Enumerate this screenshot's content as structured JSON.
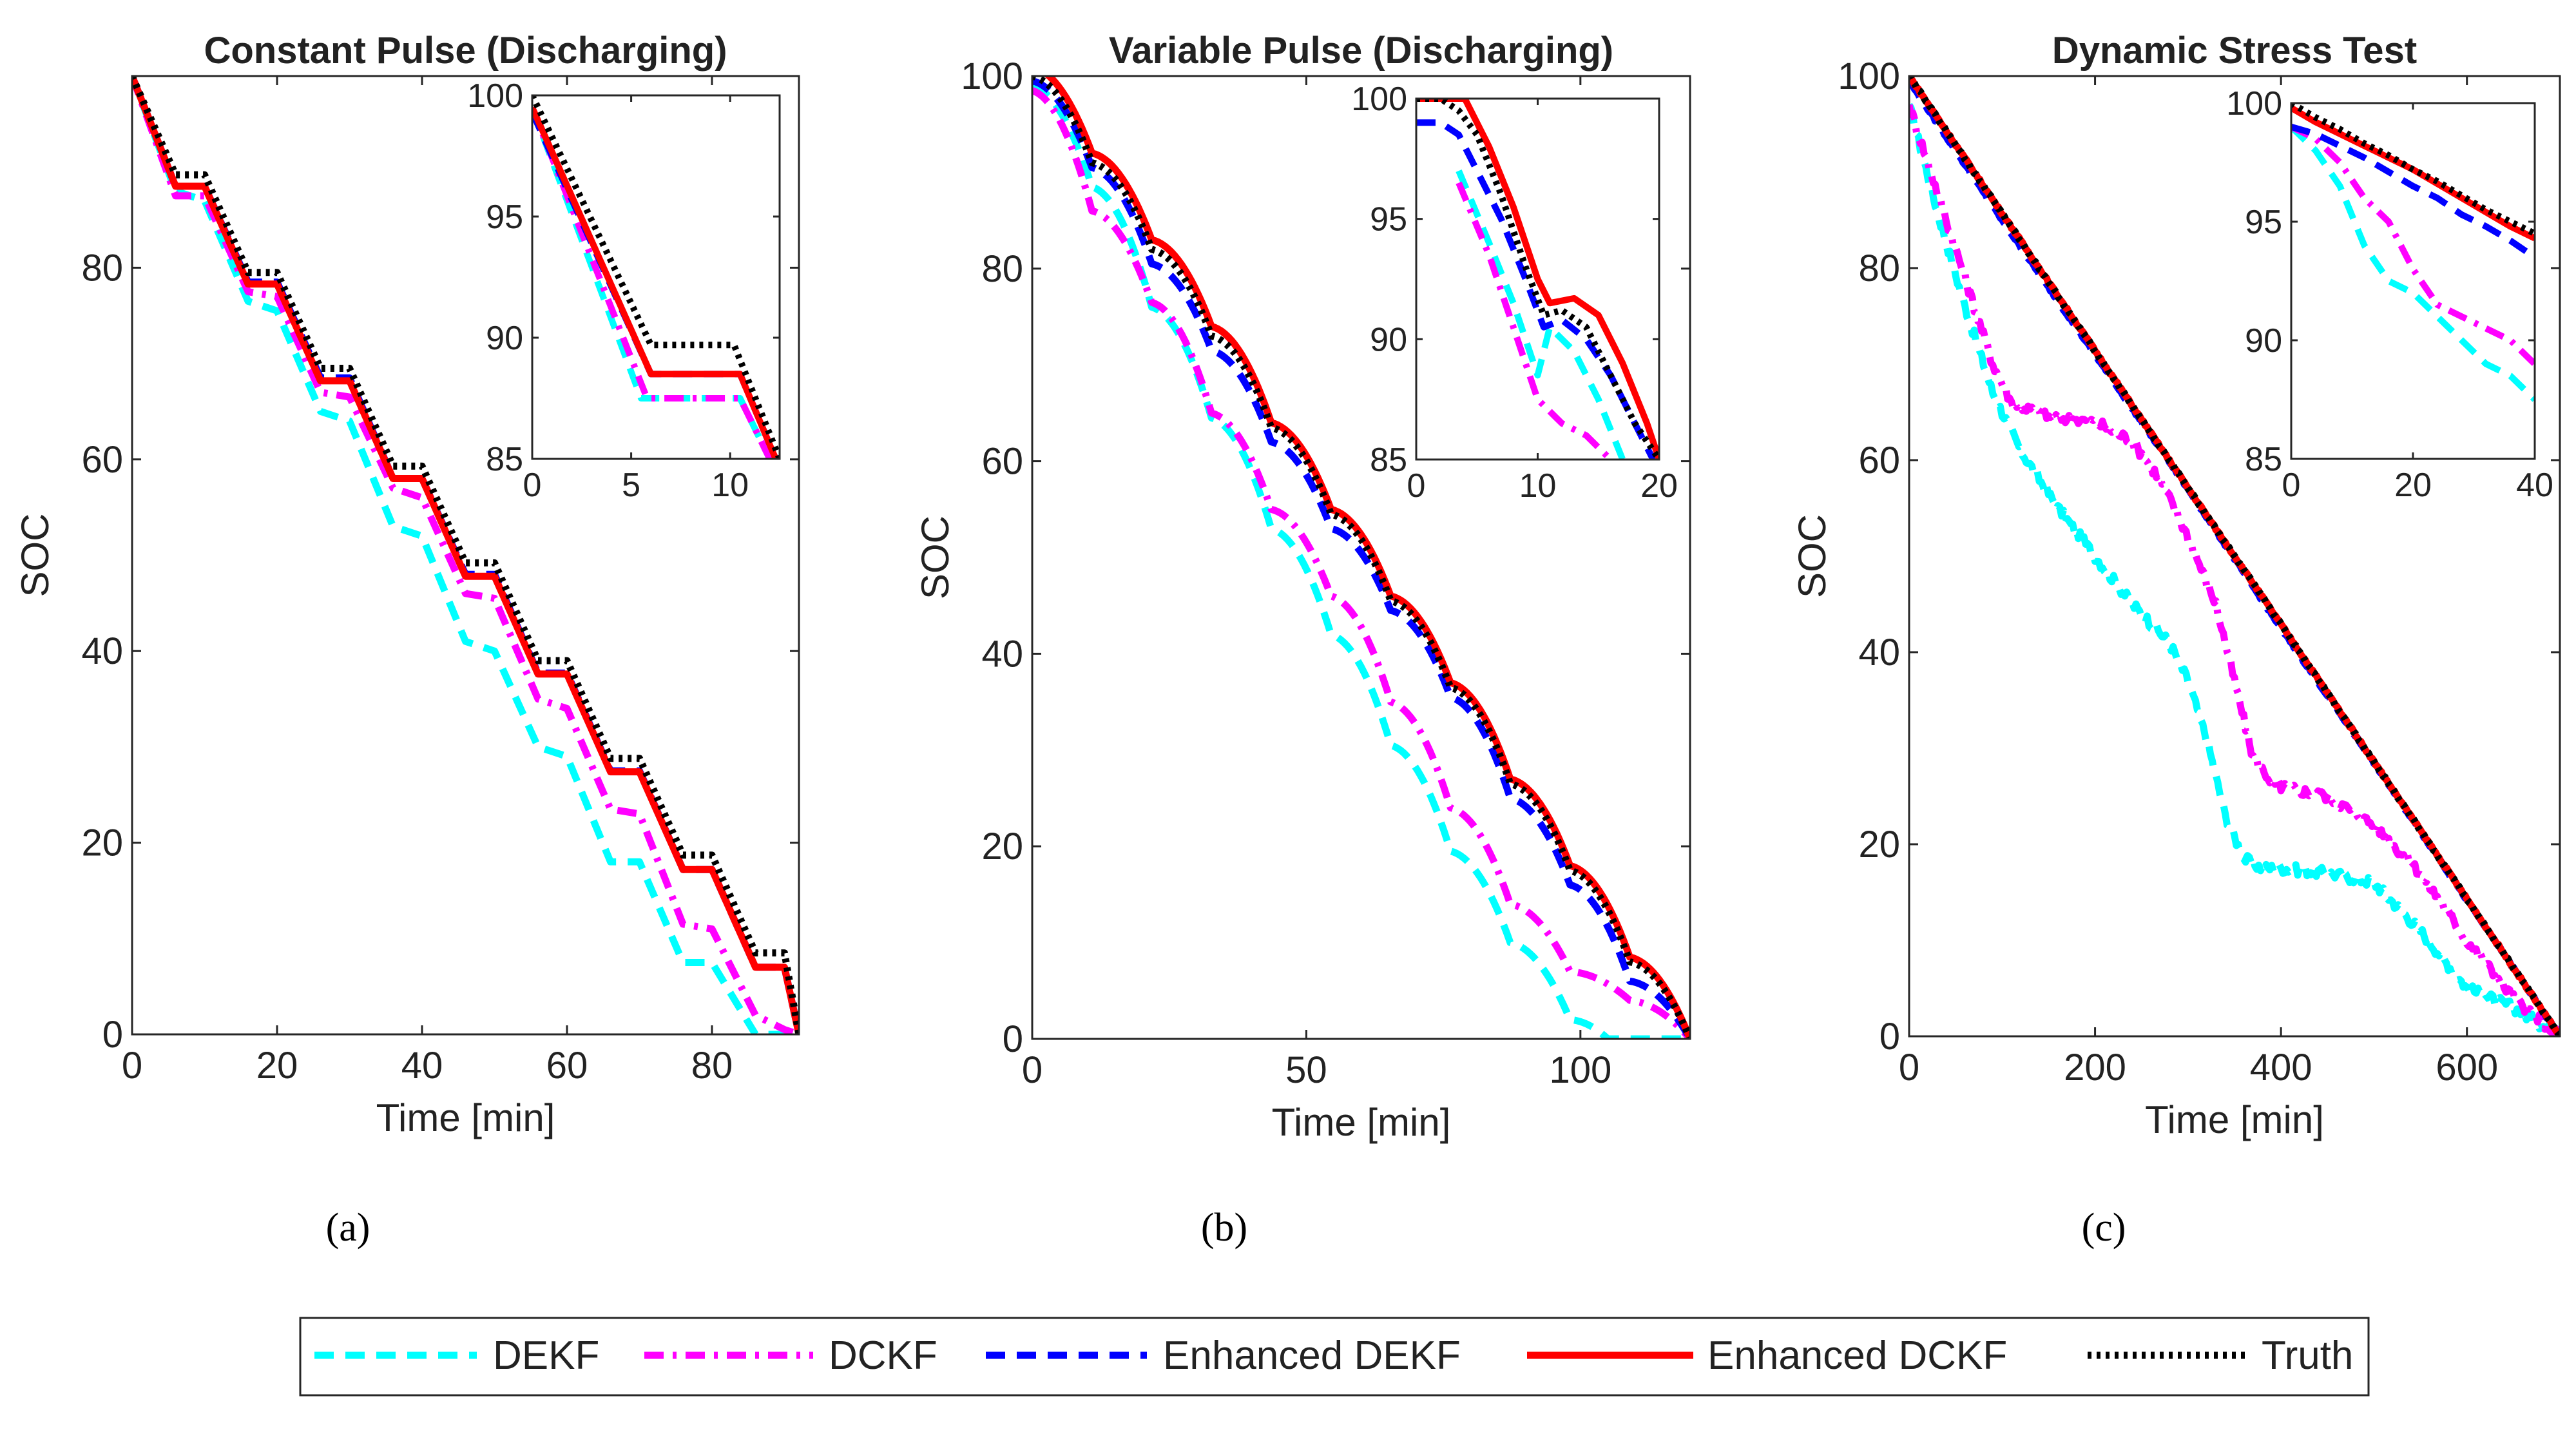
{
  "figure": {
    "subfigure_labels": [
      "(a)",
      "(b)",
      "(c)"
    ],
    "legend": [
      {
        "name": "DEKF",
        "color": "#00FFFF",
        "dash": "dash"
      },
      {
        "name": "DCKF",
        "color": "#FF00FF",
        "dash": "dashdot"
      },
      {
        "name": "Enhanced DEKF",
        "color": "#0000FF",
        "dash": "dash"
      },
      {
        "name": "Enhanced DCKF",
        "color": "#FF0000",
        "dash": "solid"
      },
      {
        "name": "Truth",
        "color": "#000000",
        "dash": "dot"
      }
    ]
  },
  "chart_data": [
    {
      "type": "line",
      "title": "Constant Pulse (Discharging)",
      "xlabel": "Time [min]",
      "ylabel": "SOC",
      "xlim": [
        0,
        92
      ],
      "ylim": [
        0,
        100
      ],
      "xticks": [
        0,
        20,
        40,
        60,
        80
      ],
      "yticks": [
        0,
        20,
        40,
        60,
        80
      ],
      "model": {
        "kind": "steps",
        "T": 92,
        "period": 10,
        "discharge": 6,
        "caps": 9
      },
      "series": [
        {
          "name": "DEKF",
          "color": "#00FFFF",
          "dash": "dash",
          "x": [
            0,
            6,
            10,
            16,
            20,
            26,
            30,
            36,
            40,
            46,
            50,
            56,
            60,
            66,
            70,
            76,
            80,
            86,
            88,
            92
          ],
          "y": [
            100,
            88,
            87,
            76.5,
            75.5,
            65,
            64,
            53,
            52,
            41,
            40,
            30,
            29,
            18,
            18,
            7.5,
            7.5,
            0,
            0,
            0
          ]
        },
        {
          "name": "DCKF",
          "color": "#FF00FF",
          "dash": "dashdot",
          "x": [
            0,
            6,
            10,
            16,
            20,
            26,
            30,
            36,
            40,
            46,
            50,
            56,
            60,
            66,
            70,
            76,
            80,
            86,
            90,
            92
          ],
          "y": [
            100,
            87.5,
            87.5,
            77.5,
            77,
            67,
            66.5,
            57,
            56,
            46,
            45.5,
            35,
            34,
            23.5,
            23,
            11.5,
            11,
            2,
            0.5,
            0
          ]
        },
        {
          "name": "Enhanced DEKF",
          "color": "#0000FF",
          "dash": "dash",
          "x": [
            0,
            6,
            10,
            16,
            20,
            26,
            30,
            36,
            40,
            46,
            50,
            56,
            60,
            66,
            70,
            76,
            80,
            86,
            90,
            92
          ],
          "y": [
            100,
            88.5,
            88.5,
            78.5,
            78.5,
            68.5,
            68.5,
            58,
            58,
            48,
            48,
            37.7,
            37.7,
            27.5,
            27.5,
            17.2,
            17.2,
            7,
            7,
            0
          ]
        },
        {
          "name": "Enhanced DCKF",
          "color": "#FF0000",
          "dash": "solid",
          "x": [
            0,
            6,
            10,
            16,
            20,
            26,
            30,
            36,
            40,
            46,
            50,
            56,
            60,
            66,
            70,
            76,
            80,
            86,
            90,
            92
          ],
          "y": [
            100,
            88.5,
            88.5,
            78.3,
            78.3,
            68.2,
            68.2,
            58,
            58,
            47.8,
            47.8,
            37.6,
            37.6,
            27.4,
            27.4,
            17.2,
            17.2,
            7,
            7,
            0
          ]
        },
        {
          "name": "Truth",
          "color": "#000000",
          "dash": "dot",
          "x": [
            0,
            6,
            10,
            16,
            20,
            26,
            30,
            36,
            40,
            46,
            50,
            56,
            60,
            66,
            70,
            76,
            80,
            86,
            90,
            92
          ],
          "y": [
            100,
            89.7,
            89.7,
            79.5,
            79.5,
            69.5,
            69.5,
            59.3,
            59.3,
            49.2,
            49.2,
            39,
            39,
            28.8,
            28.8,
            18.7,
            18.7,
            8.5,
            8.5,
            0
          ]
        }
      ],
      "inset": {
        "xlim": [
          0,
          12.5
        ],
        "ylim": [
          85,
          100
        ],
        "xticks": [
          0,
          5,
          10
        ],
        "yticks": [
          85,
          90,
          95,
          100
        ],
        "series": [
          {
            "name": "DEKF",
            "x": [
              0,
              5.5,
              10.5,
              12
            ],
            "y": [
              99.5,
              87.5,
              87.5,
              85
            ]
          },
          {
            "name": "DCKF",
            "x": [
              0,
              5.8,
              10.5,
              12
            ],
            "y": [
              99.5,
              87.5,
              87.5,
              85
            ]
          },
          {
            "name": "Enhanced DEKF",
            "x": [
              0,
              6,
              10.5,
              12.3
            ],
            "y": [
              99.3,
              88.5,
              88.5,
              85
            ]
          },
          {
            "name": "Enhanced DCKF",
            "x": [
              0,
              6,
              10.5,
              12.3
            ],
            "y": [
              99.5,
              88.5,
              88.5,
              85
            ]
          },
          {
            "name": "Truth",
            "x": [
              0,
              6,
              10.2,
              12.5
            ],
            "y": [
              100,
              89.7,
              89.7,
              85
            ]
          }
        ]
      }
    },
    {
      "type": "line",
      "title": "Variable Pulse (Discharging)",
      "xlabel": "Time [min]",
      "ylabel": "SOC",
      "xlim": [
        0,
        120
      ],
      "ylim": [
        0,
        100
      ],
      "xticks": [
        0,
        50,
        100
      ],
      "yticks": [
        0,
        20,
        40,
        60,
        80,
        100
      ],
      "model": {
        "kind": "scallops",
        "T": 120,
        "period": 10.9,
        "n": 11
      },
      "series": [
        {
          "name": "DEKF",
          "color": "#00FFFF",
          "dash": "dash",
          "x": [
            0,
            10.9,
            21.8,
            32.7,
            43.6,
            54.5,
            65.4,
            76.3,
            87.2,
            98.1,
            105,
            120
          ],
          "y": [
            99,
            88.5,
            76,
            64.5,
            53,
            42,
            30.5,
            19.5,
            10,
            2,
            0,
            0
          ]
        },
        {
          "name": "DCKF",
          "color": "#FF00FF",
          "dash": "dashdot",
          "x": [
            0,
            10.9,
            21.8,
            32.7,
            43.6,
            54.5,
            65.4,
            76.3,
            87.2,
            98.1,
            109,
            120
          ],
          "y": [
            98.5,
            86,
            76.5,
            65,
            55,
            46,
            35,
            24,
            14,
            7,
            4,
            0
          ]
        },
        {
          "name": "Enhanced DEKF",
          "color": "#0000FF",
          "dash": "dash",
          "x": [
            0,
            10.9,
            21.8,
            32.7,
            43.6,
            54.5,
            65.4,
            76.3,
            87.2,
            98.1,
            109,
            120
          ],
          "y": [
            99.5,
            90.5,
            80.5,
            71.5,
            62,
            53,
            44.5,
            35.5,
            25,
            16,
            6,
            0
          ]
        },
        {
          "name": "Enhanced DCKF",
          "color": "#FF0000",
          "dash": "solid",
          "x": [
            0,
            10.9,
            21.8,
            32.7,
            43.6,
            54.5,
            65.4,
            76.3,
            87.2,
            98.1,
            109,
            120
          ],
          "y": [
            101,
            92,
            83,
            74,
            64,
            55,
            46,
            37,
            27,
            18,
            8.5,
            0
          ]
        },
        {
          "name": "Truth",
          "color": "#000000",
          "dash": "dot",
          "x": [
            0,
            10.9,
            21.8,
            32.7,
            43.6,
            54.5,
            65.4,
            76.3,
            87.2,
            98.1,
            109,
            120
          ],
          "y": [
            100,
            91,
            82,
            73,
            63.5,
            54.5,
            45.5,
            36.5,
            26.5,
            17.5,
            8,
            0
          ]
        }
      ],
      "inset": {
        "xlim": [
          0,
          20
        ],
        "ylim": [
          85,
          100
        ],
        "xticks": [
          0,
          10,
          20
        ],
        "yticks": [
          85,
          90,
          95,
          100
        ],
        "series": [
          {
            "name": "DEKF",
            "x": [
              3.5,
              6,
              8,
              10,
              11,
              13,
              15,
              17
            ],
            "y": [
              97,
              94,
              91.5,
              88.5,
              90.5,
              89.5,
              87.5,
              85
            ]
          },
          {
            "name": "DCKF",
            "x": [
              3.5,
              6,
              8,
              10,
              12,
              14,
              16
            ],
            "y": [
              96.5,
              93.5,
              90.5,
              87.5,
              86.5,
              86,
              85
            ]
          },
          {
            "name": "Enhanced DEKF",
            "x": [
              0,
              2,
              3.5,
              5,
              7,
              9,
              10.5,
              12,
              14,
              16,
              18,
              19.5
            ],
            "y": [
              99,
              99,
              98.5,
              97,
              95,
              92.5,
              90.5,
              90.8,
              90,
              88.5,
              86.5,
              85
            ]
          },
          {
            "name": "Enhanced DCKF",
            "x": [
              0,
              2,
              4,
              6,
              8,
              10,
              11,
              13,
              15,
              17,
              19,
              20
            ],
            "y": [
              100,
              100,
              100,
              98,
              95.5,
              92.5,
              91.5,
              91.7,
              91,
              89,
              86.5,
              85
            ]
          },
          {
            "name": "Truth",
            "x": [
              0,
              2,
              3.5,
              5,
              7,
              9,
              10.5,
              12,
              14,
              16,
              18,
              20
            ],
            "y": [
              100,
              100,
              99.5,
              98.5,
              96,
              93,
              91,
              91.2,
              90.5,
              88.5,
              86.5,
              85
            ]
          }
        ]
      }
    },
    {
      "type": "line",
      "title": "Dynamic Stress Test",
      "xlabel": "Time [min]",
      "ylabel": "SOC",
      "xlim": [
        0,
        700
      ],
      "ylim": [
        0,
        100
      ],
      "xticks": [
        0,
        200,
        400,
        600
      ],
      "yticks": [
        0,
        20,
        40,
        60,
        80,
        100
      ],
      "model": {
        "kind": "noisy",
        "T": 700
      },
      "series": [
        {
          "name": "DEKF",
          "color": "#00FFFF",
          "dash": "dash",
          "x": [
            0,
            30,
            60,
            90,
            120,
            160,
            200,
            240,
            280,
            300,
            320,
            340,
            360,
            380,
            400,
            450,
            500,
            520,
            550,
            600,
            650,
            700
          ],
          "y": [
            97,
            86,
            76,
            67,
            61,
            55,
            50,
            45,
            41,
            37,
            31,
            23,
            18.5,
            17.5,
            17.5,
            17,
            16,
            14,
            11,
            5,
            3,
            0
          ]
        },
        {
          "name": "DCKF",
          "color": "#FF00FF",
          "dash": "dashdot",
          "x": [
            0,
            30,
            60,
            90,
            110,
            150,
            200,
            240,
            270,
            300,
            330,
            350,
            370,
            390,
            400,
            450,
            500,
            550,
            600,
            650,
            700
          ],
          "y": [
            97,
            88,
            79,
            70,
            66,
            64.5,
            64,
            62,
            58,
            52,
            45,
            37,
            29,
            26.5,
            26,
            25,
            22,
            17,
            10,
            4,
            0
          ]
        },
        {
          "name": "Enhanced DEKF",
          "color": "#0000FF",
          "dash": "dash",
          "x": [
            0,
            100,
            200,
            300,
            400,
            500,
            600,
            700
          ],
          "y": [
            99.5,
            85,
            71,
            57,
            42.5,
            28.5,
            14.2,
            0
          ]
        },
        {
          "name": "Enhanced DCKF",
          "color": "#FF0000",
          "dash": "solid",
          "x": [
            0,
            100,
            200,
            300,
            400,
            500,
            600,
            700
          ],
          "y": [
            100,
            85.7,
            71.4,
            57.1,
            42.9,
            28.6,
            14.3,
            0
          ]
        },
        {
          "name": "Truth",
          "color": "#000000",
          "dash": "dot",
          "x": [
            0,
            100,
            200,
            300,
            400,
            500,
            600,
            700
          ],
          "y": [
            100,
            85.7,
            71.4,
            57.1,
            42.9,
            28.6,
            14.3,
            0
          ]
        }
      ],
      "inset": {
        "xlim": [
          0,
          40
        ],
        "ylim": [
          85,
          100
        ],
        "xticks": [
          0,
          20,
          40
        ],
        "yticks": [
          85,
          90,
          95,
          100
        ],
        "series": [
          {
            "name": "DEKF",
            "x": [
              0,
              4,
              8,
              12,
              16,
              20,
              24,
              28,
              32,
              36,
              40
            ],
            "y": [
              99,
              98,
              96.5,
              94,
              92.5,
              92,
              91,
              90,
              89,
              88.5,
              87.5
            ]
          },
          {
            "name": "DCKF",
            "x": [
              0,
              4,
              8,
              12,
              16,
              20,
              24,
              28,
              32,
              36,
              40
            ],
            "y": [
              99,
              98.5,
              97.5,
              96,
              95,
              93,
              91.5,
              91,
              90.5,
              90,
              89
            ]
          },
          {
            "name": "Enhanced DEKF",
            "x": [
              0,
              4,
              8,
              12,
              16,
              20,
              24,
              28,
              32,
              36,
              40
            ],
            "y": [
              99,
              98.7,
              98.2,
              97.7,
              97.1,
              96.5,
              96,
              95.3,
              94.8,
              94.2,
              93.5
            ]
          },
          {
            "name": "Enhanced DCKF",
            "x": [
              0,
              4,
              8,
              12,
              16,
              20,
              24,
              28,
              32,
              36,
              40
            ],
            "y": [
              99.8,
              99.2,
              98.7,
              98.2,
              97.7,
              97.2,
              96.6,
              96,
              95.4,
              94.8,
              94.3
            ]
          },
          {
            "name": "Truth",
            "x": [
              0,
              4,
              8,
              12,
              16,
              20,
              24,
              28,
              32,
              36,
              40
            ],
            "y": [
              100,
              99.4,
              98.9,
              98.3,
              97.8,
              97.2,
              96.7,
              96.1,
              95.5,
              95,
              94.5
            ]
          }
        ]
      }
    }
  ]
}
